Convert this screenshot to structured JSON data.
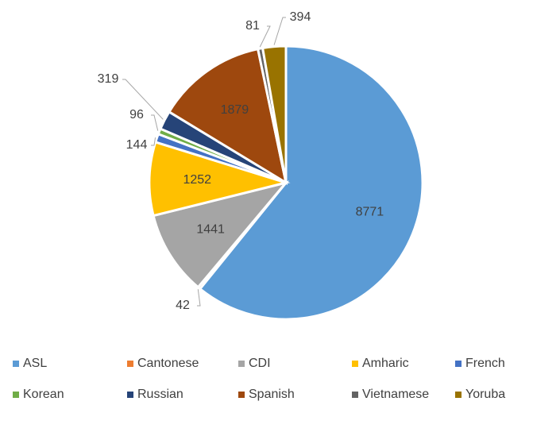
{
  "chart_data": {
    "type": "pie",
    "categories": [
      "ASL",
      "Cantonese",
      "CDI",
      "Amharic",
      "French",
      "Korean",
      "Russian",
      "Spanish",
      "Vietnamese",
      "Yoruba"
    ],
    "values": [
      8771,
      42,
      1441,
      1252,
      144,
      96,
      319,
      1879,
      81,
      394
    ],
    "colors": [
      "#5b9bd5",
      "#ed7d31",
      "#a5a5a5",
      "#ffc000",
      "#4472c4",
      "#70ad47",
      "#264478",
      "#9e480e",
      "#636363",
      "#997300"
    ],
    "legend": "bottom"
  }
}
